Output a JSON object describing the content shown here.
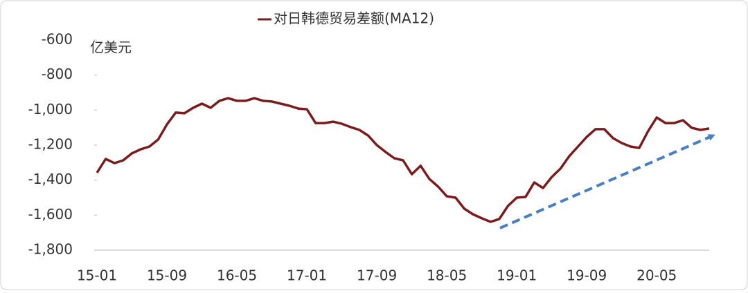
{
  "chart_data": {
    "type": "line",
    "y_unit": "亿美元",
    "categories": [
      "15-01",
      null,
      null,
      null,
      null,
      null,
      null,
      null,
      "15-09",
      null,
      null,
      null,
      null,
      null,
      null,
      null,
      "16-05",
      null,
      null,
      null,
      null,
      null,
      null,
      null,
      "17-01",
      null,
      null,
      null,
      null,
      null,
      null,
      null,
      "17-09",
      null,
      null,
      null,
      null,
      null,
      null,
      null,
      "18-05",
      null,
      null,
      null,
      null,
      null,
      null,
      null,
      "19-01",
      null,
      null,
      null,
      null,
      null,
      null,
      null,
      "19-09",
      null,
      null,
      null,
      null,
      null,
      null,
      null,
      "20-05",
      null,
      null,
      null,
      null,
      null,
      null
    ],
    "series": [
      {
        "name": "对日韩德贸易差额(MA12)",
        "color": "#7b1c1c",
        "values": [
          -1358,
          -1279,
          -1303,
          -1287,
          -1247,
          -1224,
          -1208,
          -1168,
          -1082,
          -1014,
          -1018,
          -987,
          -963,
          -987,
          -947,
          -932,
          -947,
          -947,
          -932,
          -947,
          -951,
          -963,
          -975,
          -991,
          -995,
          -1074,
          -1074,
          -1066,
          -1078,
          -1097,
          -1113,
          -1145,
          -1200,
          -1239,
          -1275,
          -1287,
          -1366,
          -1318,
          -1393,
          -1437,
          -1492,
          -1500,
          -1563,
          -1595,
          -1618,
          -1638,
          -1622,
          -1547,
          -1500,
          -1496,
          -1413,
          -1445,
          -1382,
          -1334,
          -1263,
          -1208,
          -1153,
          -1109,
          -1109,
          -1160,
          -1188,
          -1208,
          -1216,
          -1121,
          -1042,
          -1074,
          -1074,
          -1058,
          -1101,
          -1113,
          -1105
        ]
      }
    ],
    "ylim": [
      -1800,
      -600
    ],
    "yticks": [
      -600,
      -800,
      {
        "value": -1000,
        "label": "-1,000"
      },
      {
        "value": -1200,
        "label": "-1,200"
      },
      {
        "value": -1400,
        "label": "-1,400"
      },
      {
        "value": -1600,
        "label": "-1,600"
      },
      {
        "value": -1800,
        "label": "-1,800"
      }
    ],
    "grid": false
  }
}
